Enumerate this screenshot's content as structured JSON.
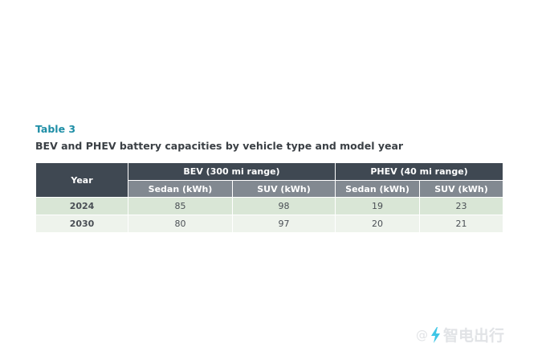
{
  "document": {
    "table_label": "Table 3",
    "caption": "BEV and PHEV battery capacities by vehicle type and model year"
  },
  "table": {
    "year_header": "Year",
    "groups": [
      {
        "label": "BEV (300 mi range)",
        "columns": [
          "Sedan (kWh)",
          "SUV (kWh)"
        ]
      },
      {
        "label": "PHEV (40 mi range)",
        "columns": [
          "Sedan (kWh)",
          "SUV (kWh)"
        ]
      }
    ],
    "rows": [
      {
        "year": "2024",
        "values": [
          "85",
          "98",
          "19",
          "23"
        ]
      },
      {
        "year": "2030",
        "values": [
          "80",
          "97",
          "20",
          "21"
        ]
      }
    ]
  },
  "watermark": {
    "icon": "at-sign-icon",
    "brand_icon": "lightning-bolt-icon",
    "text": "智电出行",
    "accent_color": "#3fc6e6"
  }
}
